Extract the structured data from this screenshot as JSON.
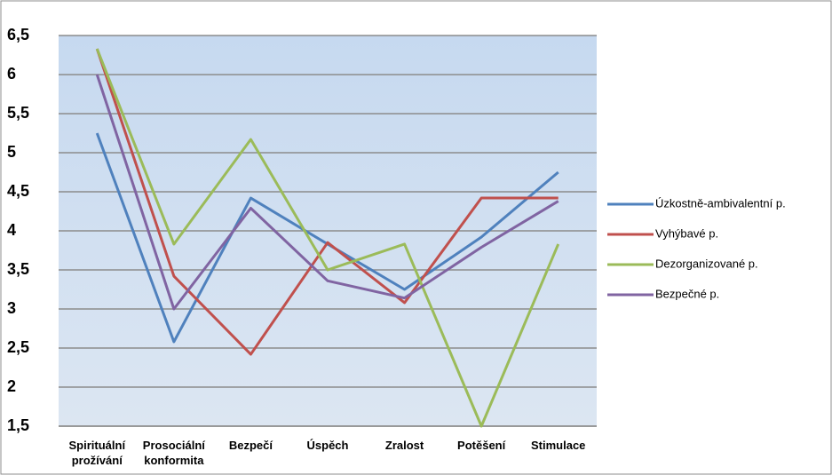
{
  "chart_data": {
    "type": "line",
    "categories": [
      "Spirituální prožívání",
      "Prosociální konformita",
      "Bezpečí",
      "Úspěch",
      "Zralost",
      "Potěšení",
      "Stimulace"
    ],
    "series": [
      {
        "name": "Úzkostně-ambivalentní p.",
        "color": "#4f81bd",
        "values": [
          5.25,
          2.58,
          4.42,
          3.83,
          3.25,
          3.92,
          4.75
        ]
      },
      {
        "name": "Vyhýbavé p.",
        "color": "#c0504d",
        "values": [
          6.33,
          3.42,
          2.42,
          3.85,
          3.08,
          4.42,
          4.42
        ]
      },
      {
        "name": "Dezorganizované p.",
        "color": "#9bbb59",
        "values": [
          6.33,
          3.83,
          5.17,
          3.5,
          3.83,
          1.5,
          3.83
        ]
      },
      {
        "name": "Bezpečné p.",
        "color": "#8064a2",
        "values": [
          6.0,
          3.0,
          4.29,
          3.36,
          3.14,
          3.79,
          4.38
        ]
      }
    ],
    "ylim": [
      1.5,
      6.5
    ],
    "yticks": [
      {
        "value": 1.5,
        "label": "1,5"
      },
      2,
      {
        "value": 2.5,
        "label": "2,5"
      },
      3,
      {
        "value": 3.5,
        "label": "3,5"
      },
      4,
      {
        "value": 4.5,
        "label": "4,5"
      },
      5,
      {
        "value": 5.5,
        "label": "5,5"
      },
      6,
      {
        "value": 6.5,
        "label": "6,5"
      }
    ],
    "grid": true,
    "legend": "right"
  }
}
